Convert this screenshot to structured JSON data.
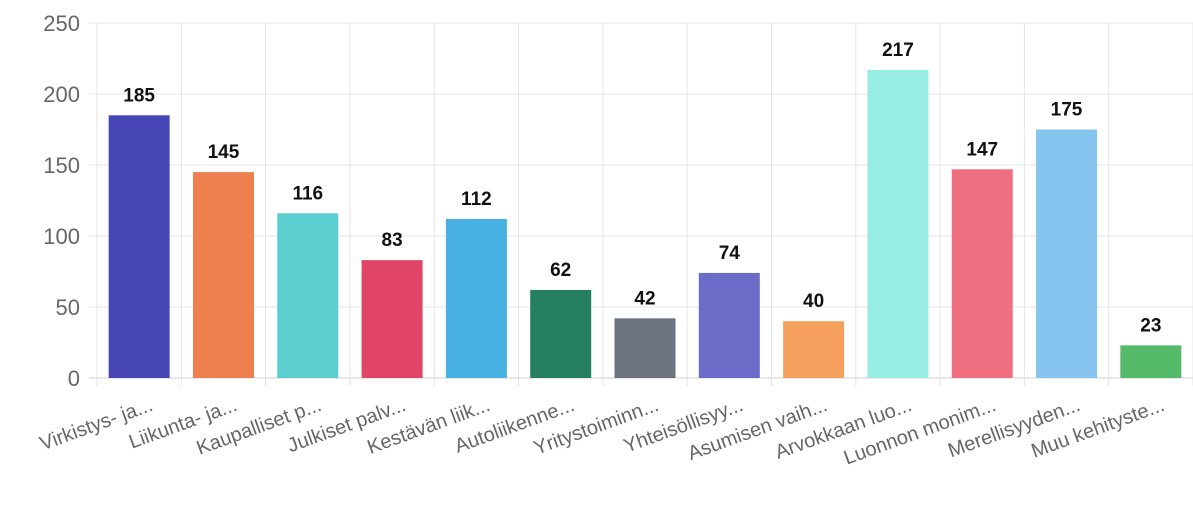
{
  "chart_data": {
    "type": "bar",
    "title": "",
    "xlabel": "",
    "ylabel": "",
    "ylim": [
      0,
      250
    ],
    "yticks": [
      0,
      50,
      100,
      150,
      200,
      250
    ],
    "grid": true,
    "legend": "none",
    "categories": [
      "Virkistys- ja...",
      "Liikunta- ja...",
      "Kaupalliset p...",
      "Julkiset palv...",
      "Kestävän liik...",
      "Autoliikenne...",
      "Yritystoiminn...",
      "Yhteisöllisyy...",
      "Asumisen vaih...",
      "Arvokkaan luo...",
      "Luonnon monim...",
      "Merellisyyden...",
      "Muu kehityste..."
    ],
    "values": [
      185,
      145,
      116,
      83,
      112,
      62,
      42,
      74,
      40,
      217,
      147,
      175,
      23
    ],
    "colors": [
      "#4646b4",
      "#ee8050",
      "#5bcfcf",
      "#e04466",
      "#47b0e0",
      "#268060",
      "#6b7280",
      "#6b6bc8",
      "#f5a05c",
      "#98ede3",
      "#ee7080",
      "#85c5f0",
      "#55bb6b"
    ]
  }
}
